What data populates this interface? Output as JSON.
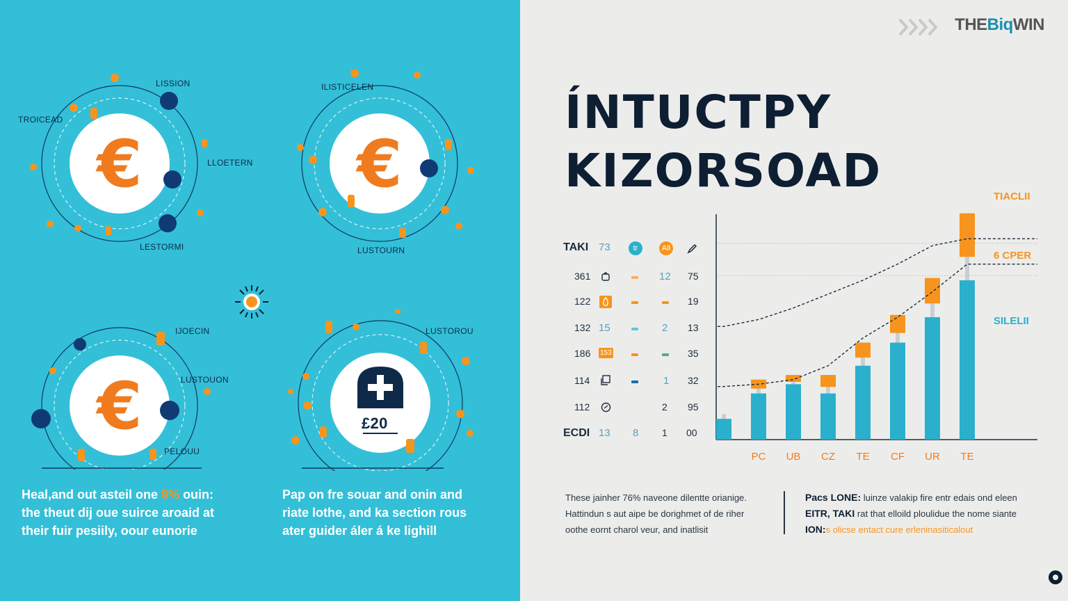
{
  "left_panel": {
    "illustrations": [
      {
        "symbol": "€",
        "labels": [
          "LISSION",
          "TROICEAD",
          "LLOETERN",
          "LESTORMI"
        ]
      },
      {
        "symbol": "€",
        "labels": [
          "ILISTICELEN",
          "LUSTOURN"
        ]
      },
      {
        "symbol": "€",
        "labels": [
          "IJOECIN",
          "LUSTOUON",
          "PELOUU"
        ]
      },
      {
        "symbol": "£20",
        "labels": [
          "LUSTOROU"
        ]
      }
    ],
    "captions": [
      {
        "before": "Heal,and out asteil one ",
        "highlight": "8%",
        "after": " ouin: the theut dij oue suirce aroaid at their fuir pesiily, oour eunorie"
      },
      {
        "before": "Pap on fre souar and onin and riate lothe, and ka section rous ater guider áler á ke lighill",
        "highlight": "",
        "after": ""
      }
    ]
  },
  "brand": {
    "logo_a": "THE",
    "logo_b": "Biq",
    "logo_c": "WIN"
  },
  "title_lines": [
    "ÍNTUCTPY",
    "KIZORSOAD"
  ],
  "table": {
    "header": {
      "c0": "TAKI",
      "c1": "73",
      "badge1": "tr",
      "badge2": "All",
      "icon": "pen-icon"
    },
    "rows": [
      {
        "c0": "361",
        "c1": "",
        "icon": "bag-icon",
        "dash1": "#f7b267",
        "c3": "12",
        "c4": "75"
      },
      {
        "c0": "122",
        "c1": "",
        "icon": "fire-icon",
        "dash1": "#f7941d",
        "dash2": "#f7941d",
        "c3": "",
        "c4": "19"
      },
      {
        "c0": "132",
        "c1": "15",
        "icon": "",
        "dash1": "#5ec8e0",
        "c3": "2",
        "c4": "13"
      },
      {
        "c0": "186",
        "c1": "",
        "icon": "badge-153",
        "badge": "153",
        "dash1": "#f7941d",
        "dash2": "#4caf8a",
        "c3": "",
        "c4": "35"
      },
      {
        "c0": "114",
        "c1": "",
        "icon": "window-icon",
        "dash1": "#1a6fa0",
        "c3": "1",
        "c4": "32"
      },
      {
        "c0": "112",
        "c1": "",
        "icon": "clock-icon",
        "c3": "2",
        "c4": "95"
      },
      {
        "c0": "ECDI",
        "c1": "13",
        "c2": "8",
        "c3": "1",
        "c4": "00"
      }
    ]
  },
  "chart_data": {
    "type": "bar",
    "categories": [
      "",
      "PC",
      "UB",
      "CZ",
      "TE",
      "CF",
      "UR",
      "TE"
    ],
    "series": [
      {
        "values": [
          9,
          20,
          24,
          20,
          32,
          42,
          53,
          69
        ],
        "color": "#2ab0cc"
      },
      {
        "values": [
          0,
          6,
          4,
          8,
          10,
          12,
          17,
          29
        ],
        "color": "#f7941d"
      }
    ],
    "trend_lines": [
      {
        "style": "dashed",
        "values": [
          49,
          52,
          57,
          63,
          69,
          76,
          84,
          87
        ]
      },
      {
        "style": "dashed",
        "values": [
          23,
          24,
          26,
          32,
          44,
          53,
          64,
          76
        ]
      }
    ],
    "ylim": [
      0,
      100
    ],
    "annotations": [
      {
        "text": "TIACLII",
        "color": "#f7941d"
      },
      {
        "text": "6 CPER",
        "color": "#f7941d"
      },
      {
        "text": "SILELII",
        "color": "#2ab0cc"
      }
    ]
  },
  "footer": {
    "left_text": [
      "These jainher 76% naveone dilentte orianige.",
      "Hattindun s aut aipe be dorighmet of de riher",
      "oothe eornt charol veur, and inatlisit"
    ],
    "right_rows": [
      {
        "key": "Pacs LONE:",
        "text": " luinze valakip fire entr edais ond eleen"
      },
      {
        "key": "EITR, TAKI",
        "text": "  rat that elloild ploulidue the nome siante"
      },
      {
        "key": "ION:",
        "text": "s olicse entact cure erleninasiticalout"
      }
    ]
  },
  "colors": {
    "cyan": "#33bfd8",
    "orange": "#f7941d",
    "navy": "#0e1e33",
    "bar_blue": "#2ab0cc"
  }
}
